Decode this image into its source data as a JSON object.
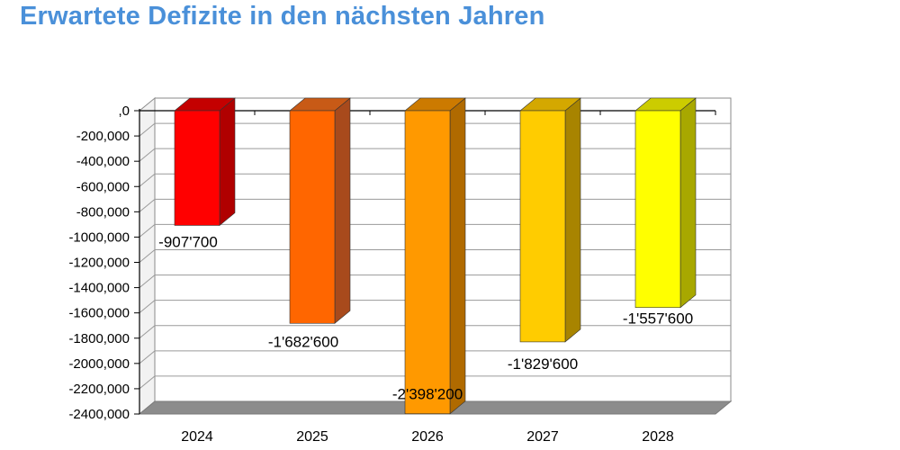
{
  "title": "Erwartete Defizite in den nächsten Jahren",
  "chart_data": {
    "type": "bar",
    "title": "Erwartete Defizite in den nächsten Jahren",
    "categories": [
      "2024",
      "2025",
      "2026",
      "2027",
      "2028"
    ],
    "values": [
      -907700,
      -1682600,
      -2398200,
      -1829600,
      -1557600
    ],
    "data_labels": [
      "-907'700",
      "-1'682'600",
      "-2'398'200",
      "-1'829'600",
      "-1'557'600"
    ],
    "ylim": [
      -2400000,
      0
    ],
    "yticks": [
      0,
      -200000,
      -400000,
      -600000,
      -800000,
      -1000000,
      -1200000,
      -1400000,
      -1600000,
      -1800000,
      -2000000,
      -2200000,
      -2400000
    ],
    "ytick_labels": [
      ",0",
      "-200,000",
      "-400,000",
      "-600,000",
      "-800,000",
      "-1000,000",
      "-1200,000",
      "-1400,000",
      "-1600,000",
      "-1800,000",
      "-2000,000",
      "-2200,000",
      "-2400,000"
    ],
    "xlabel": "",
    "ylabel": "",
    "grid": true,
    "legend": "none",
    "colors": [
      {
        "front": "#ff0000",
        "side": "#b00000",
        "top": "#c40000"
      },
      {
        "front": "#ff6600",
        "side": "#a84a1c",
        "top": "#c85a16"
      },
      {
        "front": "#ff9900",
        "side": "#b06a00",
        "top": "#cc7a00"
      },
      {
        "front": "#ffcc00",
        "side": "#a88400",
        "top": "#d4a800"
      },
      {
        "front": "#ffff00",
        "side": "#a8a800",
        "top": "#cccc00"
      }
    ]
  }
}
